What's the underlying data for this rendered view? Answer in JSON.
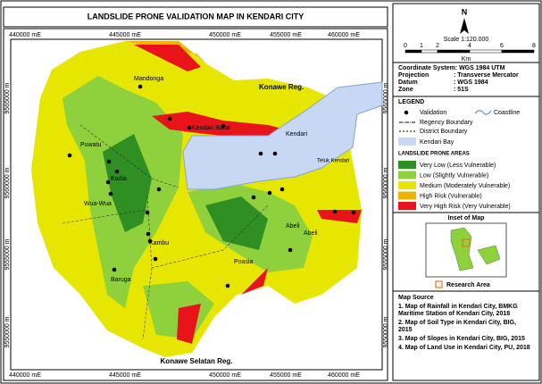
{
  "header": {
    "title": "LANDSLIDE PRONE VALIDATION MAP IN KENDARI CITY"
  },
  "map": {
    "x_ticks": [
      "440000 mE",
      "445000 mE",
      "450000 mE",
      "455000 mE",
      "460000 mE"
    ],
    "y_ticks": [
      "9565000 m",
      "9560000 m",
      "9555000 m",
      "9550000 m"
    ],
    "places": [
      "Mandonga",
      "Kendari Barat",
      "Kendari",
      "Puwatu",
      "Kadia",
      "Wua-Wua",
      "Kambu",
      "Abeli",
      "Abeli",
      "Poasia",
      "Baruga"
    ],
    "regions": [
      "Konawe Reg.",
      "Konawe Selatan Reg."
    ],
    "bay_label": "Teluk Kendari"
  },
  "north": "N",
  "scale": {
    "ticks": [
      "0",
      "1",
      "2",
      "4",
      "6",
      "8"
    ],
    "unit": "Km",
    "text": "Scale 1:120.000"
  },
  "info": {
    "title": "Coordinate System: WGS 1984 UTM",
    "rows": [
      [
        "Projection",
        ": Transverse Mercator"
      ],
      [
        "Datum",
        ": WGS 1984"
      ],
      [
        "Zone",
        ": 51S"
      ]
    ]
  },
  "legend": {
    "title": "LEGEND",
    "validation": "Validation",
    "coastline": "Coastline",
    "regency": "Regency Boundary",
    "district": "District Boundary",
    "bay": "Kendari Bay",
    "classes_title": "LANDSLIDE PRONE AREAS",
    "classes": [
      {
        "label": "Very Low (Less Vulnerable)",
        "color": "#2f8f22"
      },
      {
        "label": "Low (Slightly Vulnerable)",
        "color": "#8ed13c"
      },
      {
        "label": "Medium (Moderately Vulnerable)",
        "color": "#e6e600"
      },
      {
        "label": "High Risk (Vulnerable)",
        "color": "#f2b200"
      },
      {
        "label": "Very High Risk (Very Vulnerable)",
        "color": "#e8141a"
      }
    ]
  },
  "inset": {
    "title": "Inset of Map",
    "research": "Research Area"
  },
  "source": {
    "title": "Map Source",
    "items": [
      "1. Map of Rainfall in Kendari City, BMKG Maritime Station of Kendari City, 2018",
      "2. Map of Soil Type in Kendari City, BIG, 2015",
      "3. Map of Slopes in Kendari City, BIG, 2015",
      "4. Map of Land Use in Kendari City, PU, 2018"
    ]
  }
}
